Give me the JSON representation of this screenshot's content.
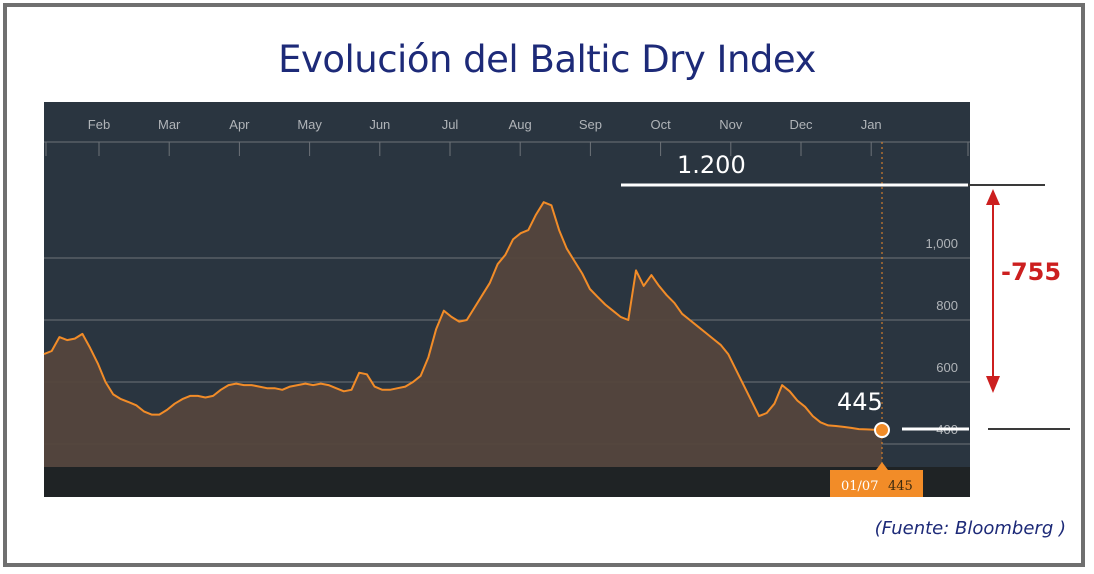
{
  "title": "Evolución del Baltic Dry Index",
  "source": "(Fuente: Bloomberg )",
  "colors": {
    "background": "#2a3540",
    "area_fill": "#54463d",
    "line": "#f28c28",
    "grid": "#6d7278",
    "axis_text": "#b0b4b8",
    "annotation_text": "#ffffff",
    "diff_arrow": "#cc1f1f"
  },
  "chart_data": {
    "type": "area",
    "title": "Evolución del Baltic Dry Index",
    "xlabel": "",
    "ylabel": "",
    "x_ticks": [
      "Feb",
      "Mar",
      "Apr",
      "May",
      "Jun",
      "Jul",
      "Aug",
      "Sep",
      "Oct",
      "Nov",
      "Dec",
      "Jan"
    ],
    "y_ticks": [
      "400",
      "600",
      "800",
      "1,000"
    ],
    "y_tick_values": [
      400,
      600,
      800,
      1000
    ],
    "ylim": [
      320,
      1250
    ],
    "grid": true,
    "series": [
      {
        "values": [
          690,
          700,
          745,
          735,
          740,
          755,
          710,
          660,
          600,
          560,
          545,
          535,
          525,
          505,
          495,
          495,
          510,
          530,
          545,
          555,
          555,
          550,
          555,
          575,
          590,
          595,
          590,
          590,
          585,
          580,
          580,
          575,
          585,
          590,
          595,
          590,
          595,
          590,
          580,
          570,
          575,
          630,
          625,
          585,
          575,
          575,
          580,
          585,
          600,
          620,
          680,
          770,
          830,
          810,
          795,
          800,
          840,
          880,
          920,
          980,
          1010,
          1060,
          1080,
          1090,
          1140,
          1180,
          1170,
          1090,
          1030,
          990,
          950,
          900,
          875,
          850,
          830,
          810,
          800,
          960,
          910,
          945,
          910,
          880,
          855,
          820,
          800,
          780,
          760,
          740,
          720,
          690,
          640,
          590,
          540,
          490,
          500,
          530,
          590,
          570,
          540,
          520,
          490,
          470,
          460,
          458,
          455,
          452,
          448,
          447,
          446,
          445
        ],
        "last_value": 445,
        "last_date": "01/07"
      }
    ],
    "annotations": {
      "level_label": "1.200",
      "level_value": 1200,
      "current_label": "445",
      "current_value": 445,
      "difference_label": "-755",
      "cursor_date": "01/07",
      "cursor_value": "445"
    }
  }
}
